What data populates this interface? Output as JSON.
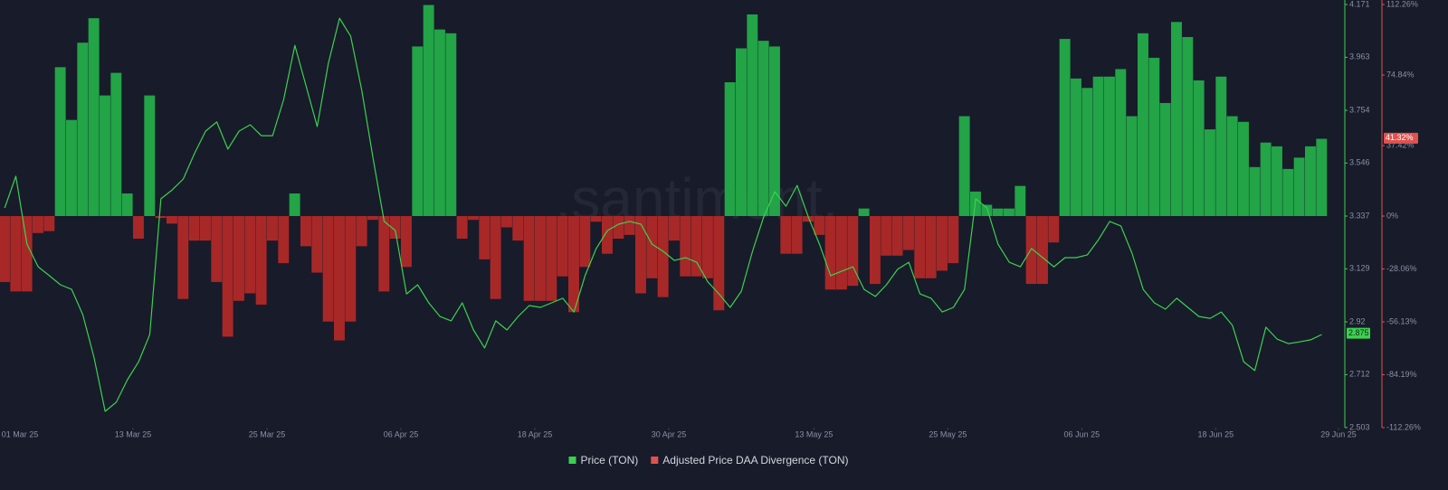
{
  "chart_data": {
    "type": "combo",
    "watermark": ".santiment.",
    "x": [
      "2025-03-01",
      "2025-03-02",
      "2025-03-03",
      "2025-03-04",
      "2025-03-05",
      "2025-03-06",
      "2025-03-07",
      "2025-03-08",
      "2025-03-09",
      "2025-03-10",
      "2025-03-11",
      "2025-03-12",
      "2025-03-13",
      "2025-03-14",
      "2025-03-15",
      "2025-03-16",
      "2025-03-17",
      "2025-03-18",
      "2025-03-19",
      "2025-03-20",
      "2025-03-21",
      "2025-03-22",
      "2025-03-23",
      "2025-03-24",
      "2025-03-25",
      "2025-03-26",
      "2025-03-27",
      "2025-03-28",
      "2025-03-29",
      "2025-03-30",
      "2025-03-31",
      "2025-04-01",
      "2025-04-02",
      "2025-04-03",
      "2025-04-04",
      "2025-04-05",
      "2025-04-06",
      "2025-04-07",
      "2025-04-08",
      "2025-04-09",
      "2025-04-10",
      "2025-04-11",
      "2025-04-12",
      "2025-04-13",
      "2025-04-14",
      "2025-04-15",
      "2025-04-16",
      "2025-04-17",
      "2025-04-18",
      "2025-04-19",
      "2025-04-20",
      "2025-04-21",
      "2025-04-22",
      "2025-04-23",
      "2025-04-24",
      "2025-04-25",
      "2025-04-26",
      "2025-04-27",
      "2025-04-28",
      "2025-04-29",
      "2025-04-30",
      "2025-05-01",
      "2025-05-02",
      "2025-05-03",
      "2025-05-04",
      "2025-05-05",
      "2025-05-06",
      "2025-05-07",
      "2025-05-08",
      "2025-05-09",
      "2025-05-10",
      "2025-05-11",
      "2025-05-12",
      "2025-05-13",
      "2025-05-14",
      "2025-05-15",
      "2025-05-16",
      "2025-05-17",
      "2025-05-18",
      "2025-05-19",
      "2025-05-20",
      "2025-05-21",
      "2025-05-22",
      "2025-05-23",
      "2025-05-24",
      "2025-05-25",
      "2025-05-26",
      "2025-05-27",
      "2025-05-28",
      "2025-05-29",
      "2025-05-30",
      "2025-05-31",
      "2025-06-01",
      "2025-06-02",
      "2025-06-03",
      "2025-06-04",
      "2025-06-05",
      "2025-06-06",
      "2025-06-07",
      "2025-06-08",
      "2025-06-09",
      "2025-06-10",
      "2025-06-11",
      "2025-06-12",
      "2025-06-13",
      "2025-06-14",
      "2025-06-15",
      "2025-06-16",
      "2025-06-17",
      "2025-06-18",
      "2025-06-19",
      "2025-06-20",
      "2025-06-21",
      "2025-06-22",
      "2025-06-23",
      "2025-06-24",
      "2025-06-25",
      "2025-06-26",
      "2025-06-27"
    ],
    "xlim": [
      "2025-03-01",
      "2025-06-29"
    ],
    "xticks": [
      {
        "value": "2025-03-01",
        "label": "01 Mar 25"
      },
      {
        "value": "2025-03-13",
        "label": "13 Mar 25"
      },
      {
        "value": "2025-03-25",
        "label": "25 Mar 25"
      },
      {
        "value": "2025-04-06",
        "label": "06 Apr 25"
      },
      {
        "value": "2025-04-18",
        "label": "18 Apr 25"
      },
      {
        "value": "2025-04-30",
        "label": "30 Apr 25"
      },
      {
        "value": "2025-05-13",
        "label": "13 May 25"
      },
      {
        "value": "2025-05-25",
        "label": "25 May 25"
      },
      {
        "value": "2025-06-06",
        "label": "06 Jun 25"
      },
      {
        "value": "2025-06-18",
        "label": "18 Jun 25"
      },
      {
        "value": "2025-06-29",
        "label": "29 Jun 25"
      }
    ],
    "ylim": [
      2.503,
      4.171
    ],
    "yticks": [
      2.503,
      2.712,
      2.92,
      3.129,
      3.337,
      3.546,
      3.754,
      3.963,
      4.171
    ],
    "y2lim": [
      -112.26,
      112.26
    ],
    "y2ticks": [
      {
        "value": 112.26,
        "label": "112.26%"
      },
      {
        "value": 74.84,
        "label": "74.84%"
      },
      {
        "value": 37.42,
        "label": "37.42%"
      },
      {
        "value": 0,
        "label": "0%"
      },
      {
        "value": -28.06,
        "label": "-28.06%"
      },
      {
        "value": -56.13,
        "label": "-56.13%"
      },
      {
        "value": -84.19,
        "label": "-84.19%"
      },
      {
        "value": -112.26,
        "label": "-112.26%"
      }
    ],
    "grid": false,
    "series": [
      {
        "name": "Price (TON)",
        "type": "line",
        "color": "#3bd14f",
        "values": [
          3.369,
          3.494,
          3.226,
          3.137,
          3.102,
          3.066,
          3.048,
          2.948,
          2.781,
          2.567,
          2.603,
          2.692,
          2.763,
          2.87,
          3.405,
          3.44,
          3.483,
          3.583,
          3.672,
          3.708,
          3.601,
          3.672,
          3.697,
          3.654,
          3.654,
          3.797,
          4.01,
          3.85,
          3.69,
          3.939,
          4.117,
          4.046,
          3.832,
          3.565,
          3.316,
          3.28,
          3.03,
          3.066,
          2.995,
          2.941,
          2.924,
          2.995,
          2.888,
          2.817,
          2.924,
          2.888,
          2.941,
          2.984,
          2.977,
          2.995,
          3.013,
          2.959,
          3.102,
          3.209,
          3.28,
          3.305,
          3.316,
          3.305,
          3.226,
          3.198,
          3.162,
          3.173,
          3.155,
          3.077,
          3.03,
          2.977,
          3.041,
          3.198,
          3.333,
          3.433,
          3.376,
          3.458,
          3.333,
          3.226,
          3.102,
          3.12,
          3.137,
          3.048,
          3.02,
          3.066,
          3.127,
          3.155,
          3.03,
          3.013,
          2.959,
          2.977,
          3.048,
          3.405,
          3.369,
          3.226,
          3.155,
          3.137,
          3.209,
          3.173,
          3.137,
          3.173,
          3.173,
          3.184,
          3.244,
          3.316,
          3.298,
          3.191,
          3.048,
          2.995,
          2.97,
          3.013,
          2.977,
          2.941,
          2.934,
          2.959,
          2.906,
          2.763,
          2.728,
          2.899,
          2.852,
          2.834,
          2.841,
          2.849,
          2.87
        ]
      },
      {
        "name": "Adjusted Price DAA Divergence (TON)",
        "type": "bar",
        "axis": "y2",
        "color": "#e0524f",
        "positive_color": "#22a447",
        "negative_color": "#a82828",
        "values": [
          -35,
          -40,
          -40,
          -9,
          -8,
          79,
          51,
          92,
          105,
          64,
          76,
          12,
          -12,
          64,
          -1,
          -4,
          -44,
          -13,
          -13,
          -35,
          -64,
          -45,
          -41,
          -47,
          -13,
          -25,
          12,
          -16,
          -30,
          -56,
          -66,
          -56,
          -16,
          -2,
          -40,
          -12,
          -27,
          90,
          112,
          99,
          97,
          -12,
          -2,
          -23,
          -44,
          -6,
          -13,
          -45,
          -45,
          -45,
          -32,
          -51,
          -27,
          -3,
          -20,
          -12,
          -10,
          -41,
          -33,
          -43,
          -13,
          -32,
          -32,
          -33,
          -50,
          71,
          89,
          107,
          93,
          90,
          -20,
          -20,
          -3,
          -10,
          -39,
          -39,
          -37,
          4,
          -36,
          -21,
          -21,
          -18,
          -33,
          -33,
          -29,
          -25,
          53,
          13,
          6,
          4,
          4,
          16,
          -36,
          -36,
          -14,
          94,
          73,
          68,
          74,
          74,
          78,
          53,
          97,
          84,
          60,
          103,
          95,
          72,
          46,
          74,
          53,
          50,
          26,
          39,
          37,
          25,
          31,
          37,
          41
        ]
      }
    ],
    "markers": [
      {
        "axis": "y",
        "value": 2.875,
        "color": "#3bd14f"
      },
      {
        "axis": "y2",
        "value": 41.32,
        "label": "41.32%",
        "color": "#e0524f"
      }
    ]
  }
}
